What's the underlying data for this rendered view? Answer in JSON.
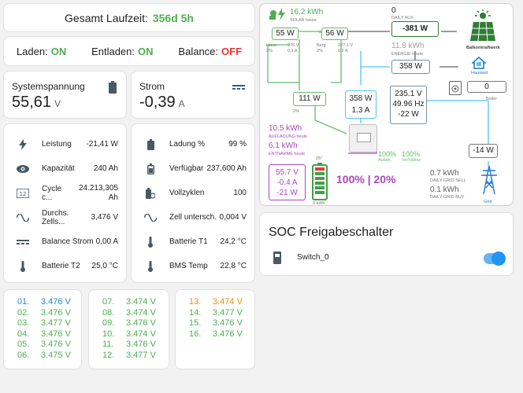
{
  "runtime": {
    "label": "Gesamt Laufzeit:",
    "value": "356d 5h"
  },
  "status": [
    {
      "label": "Laden:",
      "value": "ON",
      "color": "#4caf50"
    },
    {
      "label": "Entladen:",
      "value": "ON",
      "color": "#4caf50"
    },
    {
      "label": "Balance:",
      "value": "OFF",
      "color": "#e53935"
    }
  ],
  "voltage": {
    "label": "Systemspannung",
    "value": "55,61",
    "unit": "V",
    "icon": "battery-icon"
  },
  "current": {
    "label": "Strom",
    "value": "-0,39",
    "unit": "A",
    "icon": "current-dc-icon"
  },
  "left_list": [
    {
      "icon": "flash-icon",
      "name": "Leistung",
      "value": "-21,41 W"
    },
    {
      "icon": "eye-icon",
      "name": "Kapazität",
      "value": "240 Ah"
    },
    {
      "icon": "counter-icon",
      "name": "Cycle c...",
      "value": "24.213,305 Ah"
    },
    {
      "icon": "sine-wave-icon",
      "name": "Durchs. Zells...",
      "value": "3,476 V"
    },
    {
      "icon": "current-dc-icon",
      "name": "Balance Strom",
      "value": "0,00 A"
    },
    {
      "icon": "thermometer-icon",
      "name": "Batterie T2",
      "value": "25,0 °C"
    }
  ],
  "right_list": [
    {
      "icon": "battery-icon",
      "name": "Ladung %",
      "value": "99 %"
    },
    {
      "icon": "battery-high-icon",
      "name": "Verfügbar",
      "value": "237,600 Ah"
    },
    {
      "icon": "battery-sync-icon",
      "name": "Vollzyklen",
      "value": "100"
    },
    {
      "icon": "sine-wave-icon",
      "name": "Zell untersch.",
      "value": "0,004 V"
    },
    {
      "icon": "thermometer-icon",
      "name": "Batterie T1",
      "value": "24,2 °C"
    },
    {
      "icon": "thermometer-icon",
      "name": "BMS Temp",
      "value": "22,8 °C"
    }
  ],
  "cells": [
    [
      {
        "n": "01.",
        "v": "3.476 V",
        "color": "#1e88e5"
      },
      {
        "n": "02.",
        "v": "3.476 V",
        "color": "#4caf50"
      },
      {
        "n": "03.",
        "v": "3.477 V",
        "color": "#4caf50"
      },
      {
        "n": "04.",
        "v": "3.476 V",
        "color": "#4caf50"
      },
      {
        "n": "05.",
        "v": "3.476 V",
        "color": "#4caf50"
      },
      {
        "n": "06.",
        "v": "3.475 V",
        "color": "#4caf50"
      }
    ],
    [
      {
        "n": "07.",
        "v": "3.474 V",
        "color": "#4caf50"
      },
      {
        "n": "08.",
        "v": "3.474 V",
        "color": "#4caf50"
      },
      {
        "n": "09.",
        "v": "3.476 V",
        "color": "#4caf50"
      },
      {
        "n": "10.",
        "v": "3.474 V",
        "color": "#4caf50"
      },
      {
        "n": "11.",
        "v": "3.476 V",
        "color": "#4caf50"
      },
      {
        "n": "12.",
        "v": "3.477 V",
        "color": "#4caf50"
      }
    ],
    [
      {
        "n": "13.",
        "v": "3.474 V",
        "color": "#fb8c00"
      },
      {
        "n": "14.",
        "v": "3.477 V",
        "color": "#4caf50"
      },
      {
        "n": "15.",
        "v": "3.476 V",
        "color": "#4caf50"
      },
      {
        "n": "16.",
        "v": "3.476 V",
        "color": "#4caf50"
      }
    ]
  ],
  "energy": {
    "solar": {
      "value": "16.2 kWh",
      "label": "SOLAR heute"
    },
    "aux": {
      "value": "0",
      "label": "DAILY AUX",
      "power": "-381 W"
    },
    "pv1": {
      "power": "55 W",
      "name": "Haus",
      "pct": "2%",
      "volt": "276 V",
      "amp": "0.1 A"
    },
    "pv2": {
      "power": "56 W",
      "name": "Berg",
      "pct": "2%",
      "volt": "227.1 V",
      "amp": "0.2 A"
    },
    "balkon": {
      "label": "Balkonkraftwerk"
    },
    "house_energy": {
      "value": "11.8 kWh",
      "label": "ENERGIE heute"
    },
    "house": {
      "power": "358 W",
      "label": "Hauslast"
    },
    "boiler": {
      "value": "0",
      "label": "Boiler"
    },
    "pv_total": {
      "power": "111 W",
      "pct": "2%"
    },
    "inverter": {
      "power": "358 W",
      "amp": "1.3 A"
    },
    "grid_detail": {
      "volt": "235.1 V",
      "freq": "49.96 Hz",
      "power": "-22 W"
    },
    "charge": {
      "value": "10.5 kWh",
      "label": "AUFLADUNG heute"
    },
    "discharge": {
      "value": "6.1 kWh",
      "label": "ENTNAHME heute"
    },
    "autark": {
      "value": "100%",
      "label": "Autark"
    },
    "ratio": {
      "value": "100%",
      "label": "Verhältnis"
    },
    "battery": {
      "volt": "55.7 V",
      "amp": "-0.4 A",
      "power": "-21 W",
      "temp": "25°",
      "kwh": "0 kWh",
      "soc": "100% | 20%"
    },
    "grid": {
      "power": "-14 W",
      "sell": "0.7 kWh",
      "sell_label": "DAILY GRID SELL",
      "buy": "0.1 kWh",
      "buy_label": "DAILY GRID BUY",
      "label": "Grid"
    }
  },
  "soc": {
    "title": "SOC Freigabeschalter",
    "switch_label": "Switch_0",
    "switch_on": true
  }
}
